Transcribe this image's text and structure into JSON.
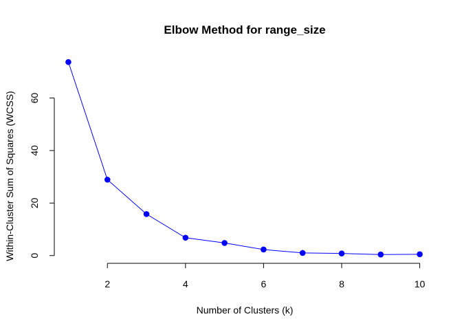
{
  "chart_data": {
    "type": "line",
    "title": "Elbow Method for range_size",
    "xlabel": "Number of Clusters (k)",
    "ylabel": "Within-Cluster Sum of Squares (WCSS)",
    "x": [
      1,
      2,
      3,
      4,
      5,
      6,
      7,
      8,
      9,
      10
    ],
    "series": [
      {
        "values": [
          73.7,
          28.9,
          15.8,
          6.8,
          4.8,
          2.3,
          1.0,
          0.8,
          0.4,
          0.5
        ],
        "color": "#0000ff"
      }
    ],
    "xticks": [
      2,
      4,
      6,
      8,
      10
    ],
    "yticks": [
      0,
      20,
      40,
      60
    ],
    "xlim": [
      0.64,
      10.36
    ],
    "ylim": [
      -2.95,
      76.65
    ],
    "grid": false,
    "marker": "filled-circle"
  }
}
